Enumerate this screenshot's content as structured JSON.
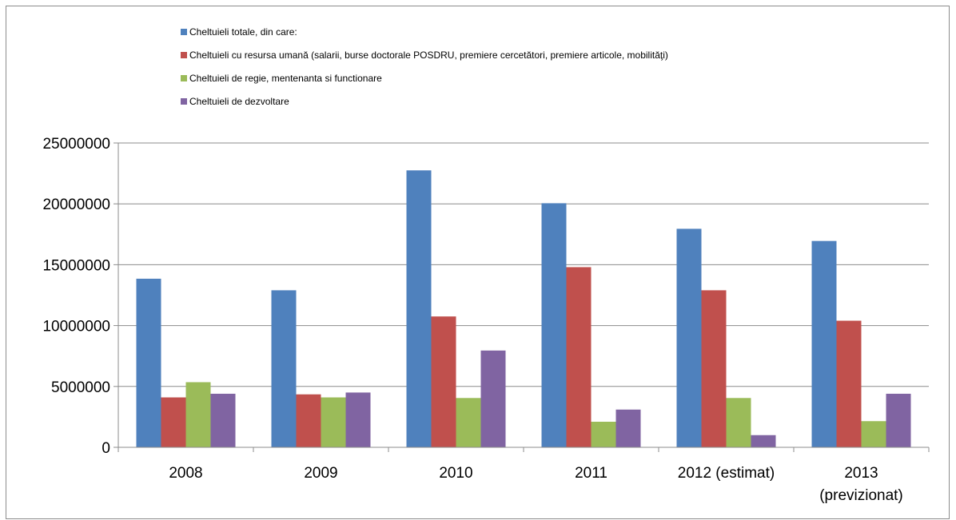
{
  "chart_data": {
    "type": "bar",
    "categories": [
      "2008",
      "2009",
      "2010",
      "2011",
      "2012 (estimat)",
      "2013 (previzionat)"
    ],
    "category_lines": [
      [
        "2008"
      ],
      [
        "2009"
      ],
      [
        "2010"
      ],
      [
        "2011"
      ],
      [
        "2012 (estimat)"
      ],
      [
        "2013",
        "(previzionat)"
      ]
    ],
    "series": [
      {
        "name": "Cheltuieli totale, din care:",
        "color": "#4f81bd",
        "values": [
          13850000,
          12900000,
          22750000,
          20050000,
          17950000,
          16950000
        ]
      },
      {
        "name": "Cheltuieli cu resursa umană (salarii, burse doctorale POSDRU, premiere cercetători, premiere articole, mobilităţi)",
        "color": "#c0504d",
        "values": [
          4100000,
          4350000,
          10750000,
          14800000,
          12900000,
          10400000
        ]
      },
      {
        "name": "Cheltuieli de regie, mentenanta si functionare",
        "color": "#9bbb59",
        "values": [
          5350000,
          4100000,
          4050000,
          2100000,
          4050000,
          2150000
        ]
      },
      {
        "name": "Cheltuieli de dezvoltare",
        "color": "#8064a2",
        "values": [
          4400000,
          4500000,
          7950000,
          3100000,
          1000000,
          4400000
        ]
      }
    ],
    "yticks": [
      "0",
      "5000000",
      "10000000",
      "15000000",
      "20000000",
      "25000000"
    ],
    "ylim": [
      0,
      25000000
    ],
    "grid": true,
    "legend_position": "top"
  }
}
